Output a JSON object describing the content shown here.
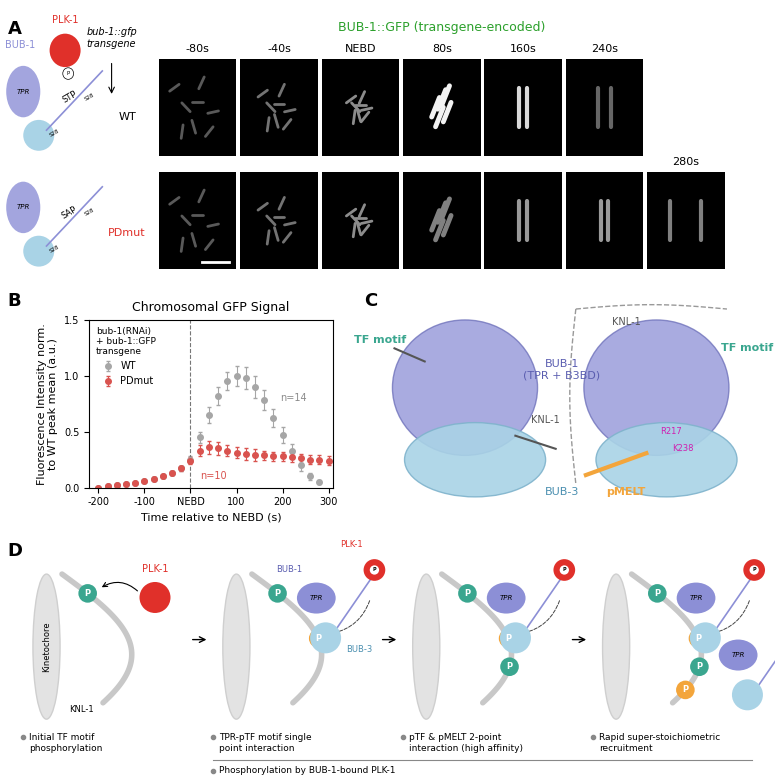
{
  "panel_labels": [
    "A",
    "B",
    "C",
    "D"
  ],
  "panel_A": {
    "title": "BUB-1::GFP (transgene-encoded)",
    "transgene_label": "bub-1::gfp\ntransgene",
    "bub_label": "BUB-1",
    "plk_label": "PLK-1",
    "tpr_label": "TPR",
    "phospho": "P",
    "rows": [
      {
        "name": "WT",
        "motif": "STP",
        "sites": [
          "S28",
          "S28"
        ]
      },
      {
        "name": "PDmut",
        "motif": "SAP",
        "sites": [
          "S28",
          "S28"
        ]
      }
    ],
    "time_labels": [
      "-80s",
      "-40s",
      "NEBD",
      "80s",
      "160s",
      "240s",
      "280s"
    ]
  },
  "chart_data": {
    "type": "scatter",
    "title": "Chromosomal GFP Signal",
    "xlabel": "Time relative to NEBD (s)",
    "ylabel": "Fluorescence Intensity norm.\nto WT peak mean (a.u.)",
    "x": [
      -200,
      -180,
      -160,
      -140,
      -120,
      -100,
      -80,
      -60,
      -40,
      -20,
      0,
      20,
      40,
      60,
      80,
      100,
      120,
      140,
      160,
      180,
      200,
      220,
      240,
      260,
      280,
      300
    ],
    "series": [
      {
        "name": "WT",
        "color": "#a6a6a6",
        "values": [
          0.0,
          0.01,
          0.02,
          0.03,
          0.04,
          0.06,
          0.08,
          0.1,
          0.13,
          0.17,
          0.25,
          0.45,
          0.65,
          0.82,
          0.95,
          1.0,
          0.98,
          0.9,
          0.78,
          0.62,
          0.47,
          0.33,
          0.2,
          0.1,
          0.05,
          null
        ],
        "errors": [
          0.005,
          0.01,
          0.01,
          0.01,
          0.01,
          0.01,
          0.015,
          0.015,
          0.02,
          0.02,
          0.03,
          0.05,
          0.07,
          0.08,
          0.08,
          0.09,
          0.1,
          0.1,
          0.09,
          0.08,
          0.07,
          0.06,
          0.05,
          0.03,
          0.02,
          null
        ]
      },
      {
        "name": "PDmut",
        "color": "#d9534f",
        "values": [
          0.0,
          0.01,
          0.02,
          0.03,
          0.04,
          0.06,
          0.08,
          0.1,
          0.13,
          0.17,
          0.24,
          0.33,
          0.36,
          0.35,
          0.33,
          0.31,
          0.3,
          0.29,
          0.29,
          0.28,
          0.28,
          0.27,
          0.26,
          0.25,
          0.25,
          0.24
        ],
        "errors": [
          0.005,
          0.01,
          0.01,
          0.01,
          0.01,
          0.01,
          0.015,
          0.015,
          0.02,
          0.02,
          0.03,
          0.05,
          0.06,
          0.06,
          0.05,
          0.05,
          0.05,
          0.05,
          0.04,
          0.04,
          0.04,
          0.04,
          0.04,
          0.04,
          0.04,
          0.04
        ]
      }
    ],
    "xlim": [
      -220,
      310
    ],
    "ylim": [
      0,
      1.5
    ],
    "xticks": [
      -200,
      -100,
      {
        "value": 0,
        "label": "NEBD"
      },
      100,
      200,
      300
    ],
    "yticks": [
      {
        "value": 0,
        "label": "0.0"
      },
      0.5,
      {
        "value": 1,
        "label": "1.0"
      },
      1.5
    ],
    "vlines": [
      0
    ],
    "marker": "o",
    "line_style": "none",
    "legend": "upper left",
    "legend_title": "bub-1(RNAi)\n+ bub-1::GFP\ntransgene",
    "annotations": [
      {
        "text": "n=14",
        "x": 195,
        "y": 0.8,
        "color": "#8c8c8c"
      },
      {
        "text": "n=10",
        "x": 20,
        "y": 0.1,
        "color": "#d9534f"
      }
    ]
  },
  "panel_C": {
    "tf_label": "TF motif",
    "knl1_label": "KNL-1",
    "bub1_label": "BUB-1\n(TPR + B3BD)",
    "bub3_label": "BUB-3",
    "pmelt_label": "pMELT",
    "residues": [
      "R217",
      "K238"
    ]
  },
  "panel_D": {
    "plk1": "PLK-1",
    "phospho": "P",
    "kinetochore": "Kinetochore",
    "knl1": "KNL-1",
    "bub1": "BUB-1",
    "bub3": "BUB-3",
    "tpr": "TPR",
    "steps": [
      "Initial TF motif\nphosphorylation",
      "TPR-pTF motif single\npoint interaction",
      "pTF & pMELT 2-point\ninteraction (high affinity)",
      "Rapid super-stoichiometric\nrecruitment"
    ],
    "bracket": "Phosphorylation by BUB-1-bound PLK-1"
  }
}
